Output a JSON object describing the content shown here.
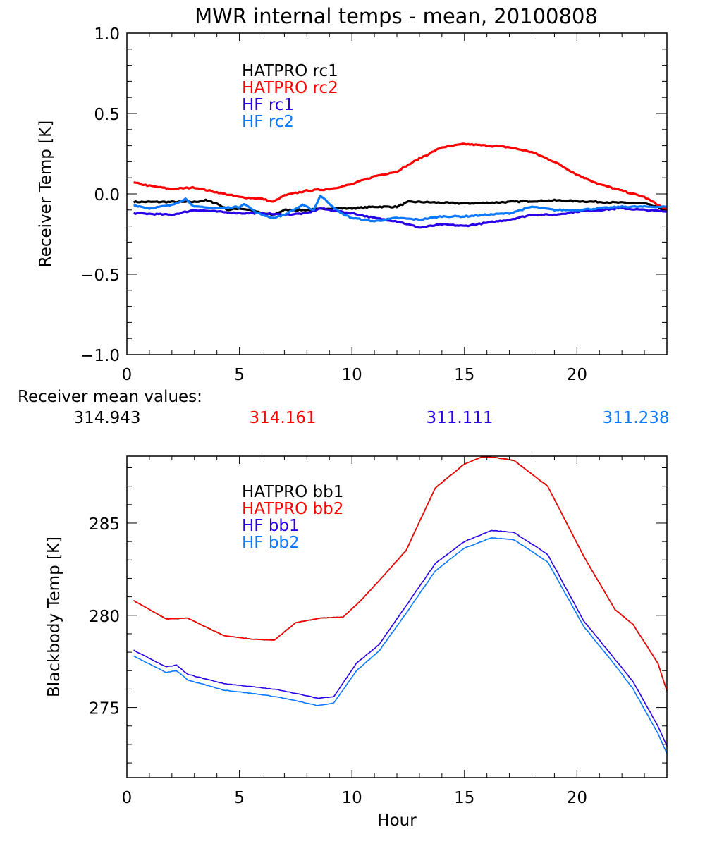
{
  "chart_data": [
    {
      "type": "line",
      "title": "MWR internal temps - mean, 20100808",
      "xlabel": "",
      "ylabel": "Receiver Temp [K]",
      "xlim": [
        0,
        24
      ],
      "ylim": [
        -1.0,
        1.0
      ],
      "xticks": [
        "0",
        "5",
        "10",
        "15",
        "20"
      ],
      "yticks": [
        "-1.0",
        "-0.5",
        "0.0",
        "0.5",
        "1.0"
      ],
      "legend_position": "top-center",
      "series": [
        {
          "name": "HATPRO rc1",
          "color": "#000000",
          "x": [
            0.3,
            1,
            2,
            3,
            3.5,
            4,
            4.5,
            5,
            5.5,
            6,
            6.5,
            7,
            8,
            9,
            10,
            11,
            12,
            12.5,
            13,
            15,
            17,
            19,
            21,
            23,
            24
          ],
          "y": [
            -0.05,
            -0.05,
            -0.05,
            -0.05,
            -0.04,
            -0.06,
            -0.1,
            -0.09,
            -0.1,
            -0.12,
            -0.13,
            -0.1,
            -0.1,
            -0.09,
            -0.09,
            -0.08,
            -0.08,
            -0.05,
            -0.05,
            -0.06,
            -0.05,
            -0.04,
            -0.05,
            -0.06,
            -0.1
          ]
        },
        {
          "name": "HATPRO rc2",
          "color": "#ff0000",
          "x": [
            0.3,
            1,
            2,
            3,
            4,
            5,
            6,
            6.5,
            7,
            8,
            9,
            10,
            11,
            12,
            13,
            14,
            15,
            16,
            17,
            18,
            19,
            20,
            21,
            22,
            23,
            24
          ],
          "y": [
            0.07,
            0.05,
            0.03,
            0.04,
            0.01,
            -0.02,
            -0.03,
            -0.05,
            -0.01,
            0.02,
            0.03,
            0.06,
            0.11,
            0.14,
            0.22,
            0.29,
            0.31,
            0.3,
            0.29,
            0.26,
            0.2,
            0.12,
            0.06,
            0.02,
            -0.02,
            -0.1
          ]
        },
        {
          "name": "HF rc1",
          "color": "#2a00e6",
          "x": [
            0.3,
            2,
            3,
            4,
            5,
            6,
            7,
            8,
            8.6,
            9,
            10,
            11,
            12,
            13,
            14,
            15,
            16,
            17,
            18,
            19,
            20,
            22,
            24
          ],
          "y": [
            -0.12,
            -0.13,
            -0.1,
            -0.11,
            -0.12,
            -0.12,
            -0.13,
            -0.12,
            -0.09,
            -0.1,
            -0.12,
            -0.15,
            -0.17,
            -0.21,
            -0.19,
            -0.2,
            -0.18,
            -0.16,
            -0.13,
            -0.13,
            -0.11,
            -0.09,
            -0.11
          ]
        },
        {
          "name": "HF rc2",
          "color": "#0a78ff",
          "x": [
            0.3,
            1,
            2,
            2.6,
            3,
            4,
            5,
            5.2,
            5.8,
            6.5,
            7,
            7.8,
            8.3,
            8.6,
            9,
            9.5,
            10,
            11,
            12,
            13,
            14,
            15,
            16,
            17,
            18,
            19,
            20,
            21,
            22,
            23,
            24
          ],
          "y": [
            -0.07,
            -0.09,
            -0.07,
            -0.03,
            -0.08,
            -0.09,
            -0.08,
            -0.06,
            -0.12,
            -0.15,
            -0.13,
            -0.07,
            -0.1,
            -0.01,
            -0.06,
            -0.12,
            -0.15,
            -0.17,
            -0.15,
            -0.16,
            -0.14,
            -0.14,
            -0.13,
            -0.12,
            -0.08,
            -0.1,
            -0.1,
            -0.09,
            -0.08,
            -0.08,
            -0.08
          ]
        }
      ]
    },
    {
      "type": "line",
      "title": "",
      "xlabel": "Hour",
      "ylabel": "Blackbody Temp [K]",
      "xlim": [
        0,
        24
      ],
      "ylim": [
        271.2,
        288.63
      ],
      "xticks": [
        "0",
        "5",
        "10",
        "15",
        "20"
      ],
      "yticks": [
        "275",
        "280",
        "285"
      ],
      "legend_position": "top-center",
      "series": [
        {
          "name": "HATPRO bb1",
          "color": "#000000",
          "x": [
            0.3,
            1.75,
            2.7,
            4.3,
            5.6,
            6.55,
            7.5,
            8.6,
            9.6,
            10.4,
            11.3,
            12.4,
            13.7,
            15,
            15.8,
            16.4,
            17.2,
            18.7,
            20.3,
            21.7,
            22.5,
            23.6,
            24
          ],
          "y": [
            280.8,
            279.8,
            279.85,
            278.9,
            278.7,
            278.65,
            279.6,
            279.85,
            279.9,
            280.8,
            282.0,
            283.5,
            286.9,
            288.2,
            288.6,
            288.55,
            288.4,
            287.0,
            283.2,
            280.3,
            279.5,
            277.4,
            275.9
          ]
        },
        {
          "name": "HATPRO bb2",
          "color": "#ff0000",
          "x": [
            0.3,
            1.75,
            2.7,
            4.3,
            5.6,
            6.55,
            7.5,
            8.6,
            9.6,
            10.4,
            11.3,
            12.4,
            13.7,
            15,
            15.8,
            16.4,
            17.2,
            18.7,
            20.3,
            21.7,
            22.5,
            23.6,
            24
          ],
          "y": [
            280.8,
            279.8,
            279.85,
            278.9,
            278.7,
            278.65,
            279.6,
            279.85,
            279.9,
            280.8,
            282.0,
            283.5,
            286.9,
            288.2,
            288.6,
            288.55,
            288.4,
            287.0,
            283.2,
            280.3,
            279.5,
            277.4,
            275.9
          ]
        },
        {
          "name": "HF bb1",
          "color": "#2a00e6",
          "x": [
            0.3,
            1.75,
            2.2,
            2.7,
            4.3,
            6.0,
            6.8,
            8.5,
            9.2,
            10.2,
            11.2,
            12.4,
            13.7,
            15,
            16.2,
            17.2,
            18.7,
            20.3,
            21.7,
            22.5,
            23.6,
            24
          ],
          "y": [
            278.1,
            277.2,
            277.3,
            276.8,
            276.3,
            276.07,
            275.95,
            275.5,
            275.6,
            277.4,
            278.4,
            280.5,
            282.8,
            284.0,
            284.6,
            284.5,
            283.3,
            279.7,
            277.6,
            276.4,
            274.0,
            272.9
          ]
        },
        {
          "name": "HF bb2",
          "color": "#0a78ff",
          "x": [
            0.3,
            1.75,
            2.2,
            2.7,
            4.3,
            6.0,
            6.8,
            8.5,
            9.2,
            10.2,
            11.2,
            12.4,
            13.7,
            15,
            16.2,
            17.2,
            18.7,
            20.3,
            21.7,
            22.5,
            23.6,
            24
          ],
          "y": [
            277.8,
            276.9,
            277.0,
            276.5,
            275.95,
            275.7,
            275.55,
            275.1,
            275.25,
            277.0,
            278.05,
            280.1,
            282.4,
            283.65,
            284.2,
            284.1,
            282.9,
            279.4,
            277.3,
            276.0,
            273.6,
            272.5
          ]
        }
      ]
    }
  ],
  "receiver_means": {
    "label": "Receiver mean values:",
    "values": [
      {
        "text": "314.943",
        "color": "#000000"
      },
      {
        "text": "314.161",
        "color": "#ff0000"
      },
      {
        "text": "311.111",
        "color": "#2a00e6"
      },
      {
        "text": "311.238",
        "color": "#0a78ff"
      }
    ]
  }
}
